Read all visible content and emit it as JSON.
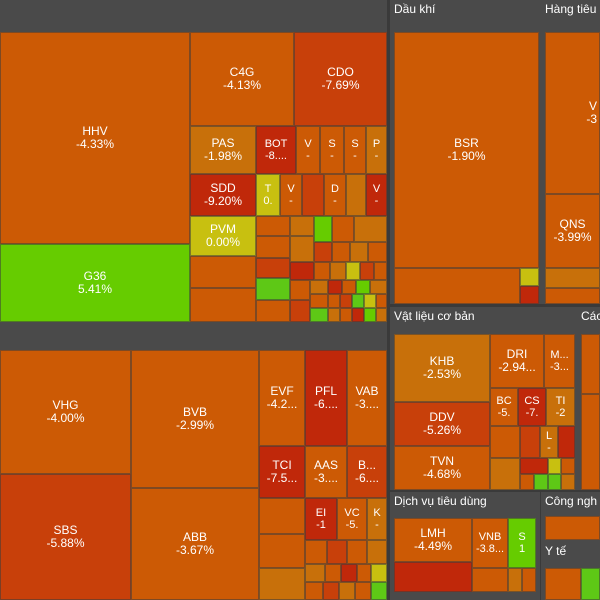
{
  "colors": {
    "deep_red": "#c0280a",
    "red": "#cc4a08",
    "orange": "#cc5a05",
    "light_orange": "#c8780a",
    "yellow": "#c8c010",
    "green": "#5ec816",
    "bright_green": "#66cc00",
    "sector_bg": "#4a4a4a",
    "background": "#3a3a3a"
  },
  "sectors": {
    "dau_khi": "Dầu khí",
    "hang_tieu_dung": "Hàng tiêu",
    "vat_lieu_co_ban": "Vật liệu cơ bản",
    "cac": "Các",
    "dich_vu_tieu_dung": "Dịch vụ tiêu dùng",
    "cong_nghe": "Công ngh",
    "y_te": "Y tế"
  },
  "tiles": {
    "hhv": {
      "sym": "HHV",
      "pct": "-4.33%"
    },
    "c4g": {
      "sym": "C4G",
      "pct": "-4.13%"
    },
    "cdo": {
      "sym": "CDO",
      "pct": "-7.69%"
    },
    "pas": {
      "sym": "PAS",
      "pct": "-1.98%"
    },
    "bot": {
      "sym": "BOT",
      "pct": "-8...."
    },
    "v1": {
      "sym": "V",
      "pct": "-"
    },
    "s1": {
      "sym": "S",
      "pct": "-"
    },
    "s2": {
      "sym": "S",
      "pct": "-"
    },
    "p1": {
      "sym": "P",
      "pct": "-"
    },
    "sdd": {
      "sym": "SDD",
      "pct": "-9.20%"
    },
    "t1": {
      "sym": "T",
      "pct": "0."
    },
    "v2": {
      "sym": "V",
      "pct": "-"
    },
    "d1": {
      "sym": "D",
      "pct": "-"
    },
    "v3": {
      "sym": "V",
      "pct": "-"
    },
    "pvm": {
      "sym": "PVM",
      "pct": "0.00%"
    },
    "g36": {
      "sym": "G36",
      "pct": "5.41%"
    },
    "vhg": {
      "sym": "VHG",
      "pct": "-4.00%"
    },
    "bvb": {
      "sym": "BVB",
      "pct": "-2.99%"
    },
    "evf": {
      "sym": "EVF",
      "pct": "-4.2..."
    },
    "pfl": {
      "sym": "PFL",
      "pct": "-6...."
    },
    "vab": {
      "sym": "VAB",
      "pct": "-3...."
    },
    "tci": {
      "sym": "TCI",
      "pct": "-7.5..."
    },
    "aas": {
      "sym": "AAS",
      "pct": "-3...."
    },
    "b1": {
      "sym": "B...",
      "pct": "-6...."
    },
    "sbs": {
      "sym": "SBS",
      "pct": "-5.88%"
    },
    "abb": {
      "sym": "ABB",
      "pct": "-3.67%"
    },
    "ei": {
      "sym": "EI",
      "pct": "-1"
    },
    "vc": {
      "sym": "VC",
      "pct": "-5."
    },
    "k1": {
      "sym": "K",
      "pct": "-"
    },
    "bsr": {
      "sym": "BSR",
      "pct": "-1.90%"
    },
    "v4": {
      "sym": "V",
      "pct": "-3"
    },
    "qns": {
      "sym": "QNS",
      "pct": "-3.99%"
    },
    "khb": {
      "sym": "KHB",
      "pct": "-2.53%"
    },
    "dri": {
      "sym": "DRI",
      "pct": "-2.94..."
    },
    "m1": {
      "sym": "M...",
      "pct": "-3..."
    },
    "bc": {
      "sym": "BC",
      "pct": "-5."
    },
    "cs": {
      "sym": "CS",
      "pct": "-7."
    },
    "ti": {
      "sym": "TI",
      "pct": "-2"
    },
    "ddv": {
      "sym": "DDV",
      "pct": "-5.26%"
    },
    "l1": {
      "sym": "L",
      "pct": "-"
    },
    "tvn": {
      "sym": "TVN",
      "pct": "-4.68%"
    },
    "lmh": {
      "sym": "LMH",
      "pct": "-4.49%"
    },
    "vnb": {
      "sym": "VNB",
      "pct": "-3.8..."
    },
    "s3": {
      "sym": "S",
      "pct": "1"
    }
  }
}
